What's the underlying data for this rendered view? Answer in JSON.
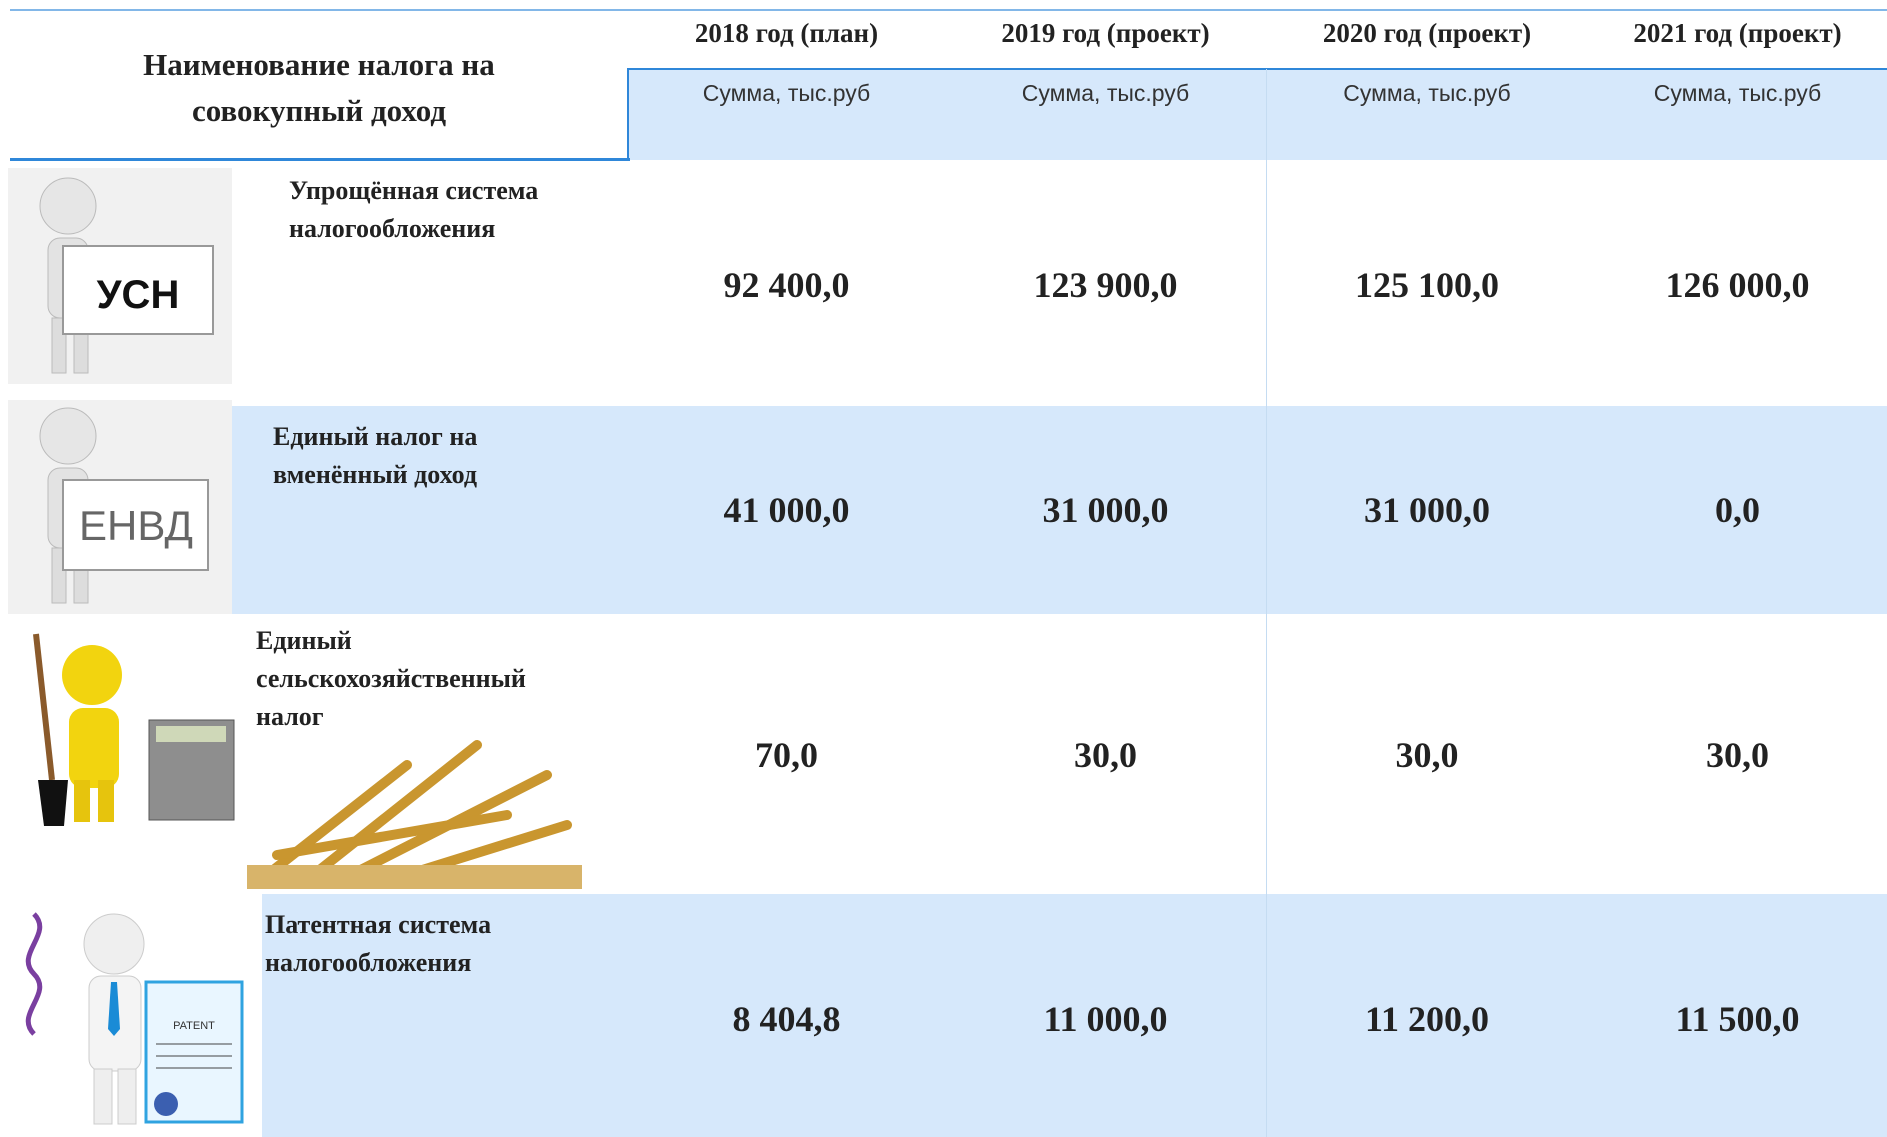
{
  "header": {
    "title_lines": [
      "Наименование налога на",
      "совокупный доход"
    ],
    "columns": [
      {
        "year": "2018 год (план)",
        "unit": "Сумма, тыс.руб"
      },
      {
        "year": "2019 год (проект)",
        "unit": "Сумма, тыс.руб"
      },
      {
        "year": "2020 год (проект)",
        "unit": "Сумма, тыс.руб"
      },
      {
        "year": "2021 год (проект)",
        "unit": "Сумма, тыс.руб"
      }
    ]
  },
  "rows": [
    {
      "icon_label": "УСН",
      "name_lines": [
        "Упрощённая система",
        "налогообложения"
      ],
      "values": [
        "92 400,0",
        "123 900,0",
        "125 100,0",
        "126 000,0"
      ]
    },
    {
      "icon_label": "ЕНВД",
      "name_lines": [
        "Единый налог на",
        "вменённый доход"
      ],
      "values": [
        "41 000,0",
        "31 000,0",
        "31 000,0",
        "0,0"
      ]
    },
    {
      "name_lines": [
        "Единый",
        "сельскохозяйственный",
        "налог"
      ],
      "values": [
        "70,0",
        "30,0",
        "30,0",
        "30,0"
      ]
    },
    {
      "icon_label": "PATENT",
      "name_lines": [
        "Патентная система",
        "налогообложения"
      ],
      "values": [
        "8 404,8",
        "11 000,0",
        "11 200,0",
        "11 500,0"
      ]
    }
  ]
}
